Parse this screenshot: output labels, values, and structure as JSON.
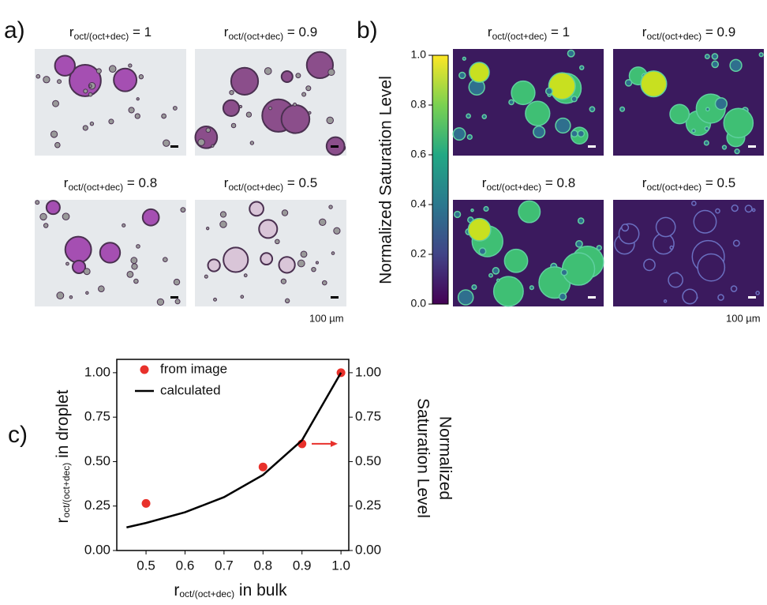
{
  "panel_a": {
    "label": "a)",
    "images": [
      {
        "base": "r",
        "sub": "oct/(oct+dec)",
        "rest": " = 1"
      },
      {
        "base": "r",
        "sub": "oct/(oct+dec)",
        "rest": " = 0.9"
      },
      {
        "base": "r",
        "sub": "oct/(oct+dec)",
        "rest": " = 0.8"
      },
      {
        "base": "r",
        "sub": "oct/(oct+dec)",
        "rest": " = 0.5"
      }
    ],
    "scale_bar": "100 µm"
  },
  "panel_b": {
    "label": "b)",
    "images": [
      {
        "base": "r",
        "sub": "oct/(oct+dec)",
        "rest": " = 1"
      },
      {
        "base": "r",
        "sub": "oct/(oct+dec)",
        "rest": " = 0.9"
      },
      {
        "base": "r",
        "sub": "oct/(oct+dec)",
        "rest": " = 0.8"
      },
      {
        "base": "r",
        "sub": "oct/(oct+dec)",
        "rest": " = 0.5"
      }
    ],
    "scale_bar": "100 µm",
    "colorbar": {
      "label": "Normalized Saturation Level",
      "lim": [
        0,
        1
      ],
      "ticks": [
        {
          "value": 0,
          "label": "0.0"
        },
        {
          "value": 0.2,
          "label": "0.2"
        },
        {
          "value": 0.4,
          "label": "0.4"
        },
        {
          "value": 0.6,
          "label": "0.6"
        },
        {
          "value": 0.8,
          "label": "0.8"
        },
        {
          "value": 1,
          "label": "1.0"
        }
      ]
    }
  },
  "chart_data": {
    "type": "scatter-line",
    "panel_label": "c)",
    "x_label": {
      "base": "r",
      "sub": "oct/(oct+dec)",
      "rest": " in bulk"
    },
    "y_label": {
      "base": "r",
      "sub": "oct/(oct+dec)",
      "rest": " in droplet"
    },
    "y2_label": [
      "Normalized",
      "Saturation Level"
    ],
    "xlim": [
      0.425,
      1.02
    ],
    "ylim": [
      0,
      1.075
    ],
    "y2lim": [
      0,
      1.075
    ],
    "xticks": [
      0.5,
      0.6,
      0.7,
      0.8,
      0.9,
      {
        "value": 1,
        "label": "1.0"
      }
    ],
    "yticks": [
      {
        "value": 0,
        "label": "0.00"
      },
      {
        "value": 0.25,
        "label": "0.25"
      },
      {
        "value": 0.5,
        "label": "0.50"
      },
      {
        "value": 0.75,
        "label": "0.75"
      },
      {
        "value": 1,
        "label": "1.00"
      }
    ],
    "y2ticks": [
      {
        "value": 0,
        "label": "0.00"
      },
      {
        "value": 0.25,
        "label": "0.25"
      },
      {
        "value": 0.5,
        "label": "0.50"
      },
      {
        "value": 0.75,
        "label": "0.75"
      },
      {
        "value": 1,
        "label": "1.00"
      }
    ],
    "legend": "upper left",
    "series": [
      {
        "name": "from image",
        "kind": "scatter",
        "color": "#e8312b",
        "x": [
          0.5,
          0.8,
          0.9,
          1.0
        ],
        "values": [
          0.265,
          0.47,
          0.6,
          1.0
        ]
      },
      {
        "name": "calculated",
        "kind": "line",
        "color": "#000000",
        "x": [
          0.45,
          0.5,
          0.6,
          0.7,
          0.8,
          0.9,
          1.0
        ],
        "values": [
          0.13,
          0.155,
          0.215,
          0.3,
          0.425,
          0.62,
          1.0
        ]
      }
    ]
  }
}
